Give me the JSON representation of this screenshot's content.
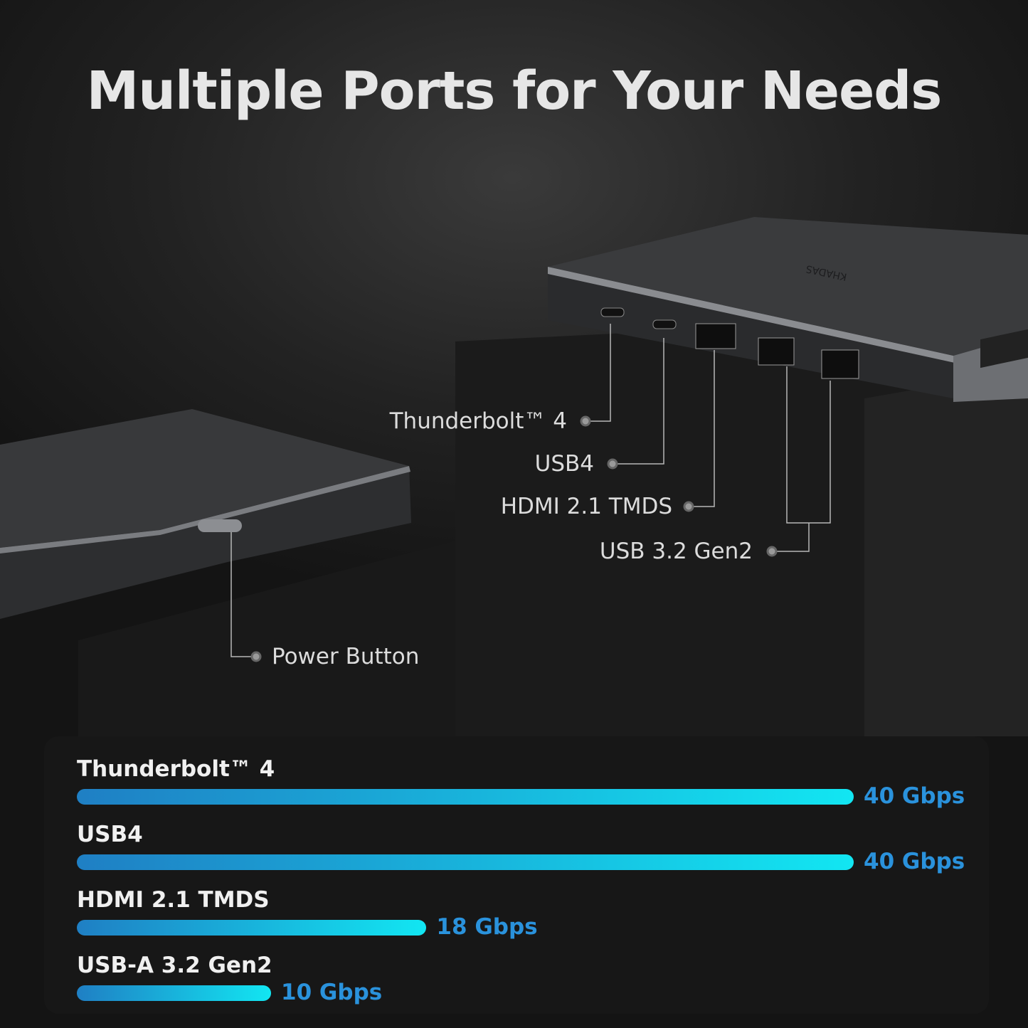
{
  "title": "Multiple Ports for Your Needs",
  "logo_text": "KHADAS",
  "callouts": [
    {
      "label": "Thunderbolt™ 4"
    },
    {
      "label": "USB4"
    },
    {
      "label": "HDMI 2.1 TMDS"
    },
    {
      "label": "USB 3.2 Gen2"
    },
    {
      "label": "Power Button"
    }
  ],
  "colors": {
    "bar_start": "#1f7fc4",
    "bar_end": "#12e6f2",
    "value_text": "#2a92dc"
  },
  "chart_data": {
    "type": "bar",
    "orientation": "horizontal",
    "unit": "Gbps",
    "categories": [
      "Thunderbolt™ 4",
      "USB4",
      "HDMI 2.1 TMDS",
      "USB-A 3.2 Gen2"
    ],
    "values": [
      40,
      40,
      18,
      10
    ],
    "value_labels": [
      "40 Gbps",
      "40 Gbps",
      "18 Gbps",
      "10 Gbps"
    ]
  }
}
